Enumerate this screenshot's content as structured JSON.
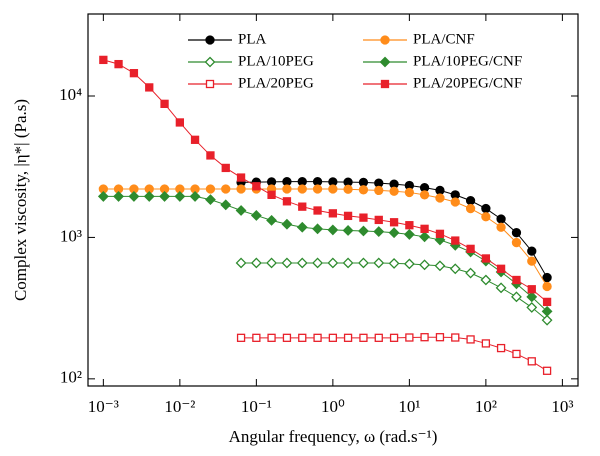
{
  "chart_data": {
    "type": "line",
    "xlabel": "Angular frequency, ω (rad.s⁻¹)",
    "ylabel": "Complex viscosity, |η*| (Pa.s)",
    "xscale": "log",
    "yscale": "log",
    "xlim": [
      0.00063,
      1600
    ],
    "ylim": [
      89,
      38000
    ],
    "xticks": [
      {
        "value": 0.001,
        "label": "10⁻³"
      },
      {
        "value": 0.01,
        "label": "10⁻²"
      },
      {
        "value": 0.1,
        "label": "10⁻¹"
      },
      {
        "value": 1,
        "label": "10⁰"
      },
      {
        "value": 10,
        "label": "10¹"
      },
      {
        "value": 100,
        "label": "10²"
      },
      {
        "value": 1000,
        "label": "10³"
      }
    ],
    "yticks": [
      {
        "value": 100,
        "label": "10²"
      },
      {
        "value": 1000,
        "label": "10³"
      },
      {
        "value": 10000,
        "label": "10⁴"
      }
    ],
    "x": [
      0.001,
      0.00158,
      0.00251,
      0.00398,
      0.00631,
      0.01,
      0.0158,
      0.0251,
      0.0398,
      0.0631,
      0.1,
      0.158,
      0.251,
      0.398,
      0.631,
      1,
      1.58,
      2.51,
      3.98,
      6.31,
      10,
      15.8,
      25.1,
      39.8,
      63.1,
      100,
      158,
      251,
      398,
      631
    ],
    "series": [
      {
        "name": "PLA",
        "color": "#000000",
        "marker": "circle",
        "filled": true,
        "values": [
          null,
          null,
          null,
          null,
          null,
          null,
          null,
          null,
          null,
          2450,
          2460,
          2470,
          2480,
          2480,
          2480,
          2470,
          2460,
          2450,
          2420,
          2380,
          2330,
          2250,
          2150,
          2000,
          1820,
          1600,
          1350,
          1080,
          800,
          520
        ]
      },
      {
        "name": "PLA/CNF",
        "color": "#ff8c1a",
        "marker": "circle",
        "filled": true,
        "values": [
          2200,
          2200,
          2200,
          2200,
          2200,
          2200,
          2200,
          2200,
          2200,
          2200,
          2200,
          2200,
          2200,
          2200,
          2200,
          2200,
          2190,
          2170,
          2150,
          2120,
          2080,
          2000,
          1900,
          1780,
          1600,
          1400,
          1180,
          920,
          680,
          450
        ]
      },
      {
        "name": "PLA/10PEG",
        "color": "#2e8b2e",
        "marker": "diamond",
        "filled": false,
        "values": [
          null,
          null,
          null,
          null,
          null,
          null,
          null,
          null,
          null,
          660,
          660,
          660,
          660,
          660,
          660,
          660,
          660,
          660,
          660,
          655,
          650,
          640,
          630,
          600,
          560,
          500,
          440,
          380,
          320,
          260
        ]
      },
      {
        "name": "PLA/10PEG/CNF",
        "color": "#2e8b2e",
        "marker": "diamond",
        "filled": true,
        "values": [
          1950,
          1950,
          1950,
          1950,
          1950,
          1950,
          1950,
          1850,
          1700,
          1550,
          1430,
          1320,
          1240,
          1180,
          1150,
          1130,
          1120,
          1110,
          1100,
          1080,
          1050,
          1010,
          960,
          880,
          790,
          680,
          570,
          470,
          380,
          300
        ]
      },
      {
        "name": "PLA/20PEG",
        "color": "#e8202a",
        "marker": "square",
        "filled": false,
        "values": [
          null,
          null,
          null,
          null,
          null,
          null,
          null,
          null,
          null,
          195,
          195,
          195,
          195,
          195,
          195,
          195,
          195,
          195,
          195,
          195,
          196,
          197,
          197,
          196,
          190,
          178,
          165,
          150,
          133,
          114
        ]
      },
      {
        "name": "PLA/20PEG/CNF",
        "color": "#e8202a",
        "marker": "square",
        "filled": true,
        "values": [
          18000,
          16800,
          14500,
          11500,
          8800,
          6500,
          4900,
          3800,
          3100,
          2650,
          2300,
          2000,
          1800,
          1650,
          1550,
          1480,
          1420,
          1380,
          1330,
          1280,
          1220,
          1150,
          1060,
          950,
          830,
          710,
          600,
          500,
          430,
          350
        ]
      }
    ]
  }
}
